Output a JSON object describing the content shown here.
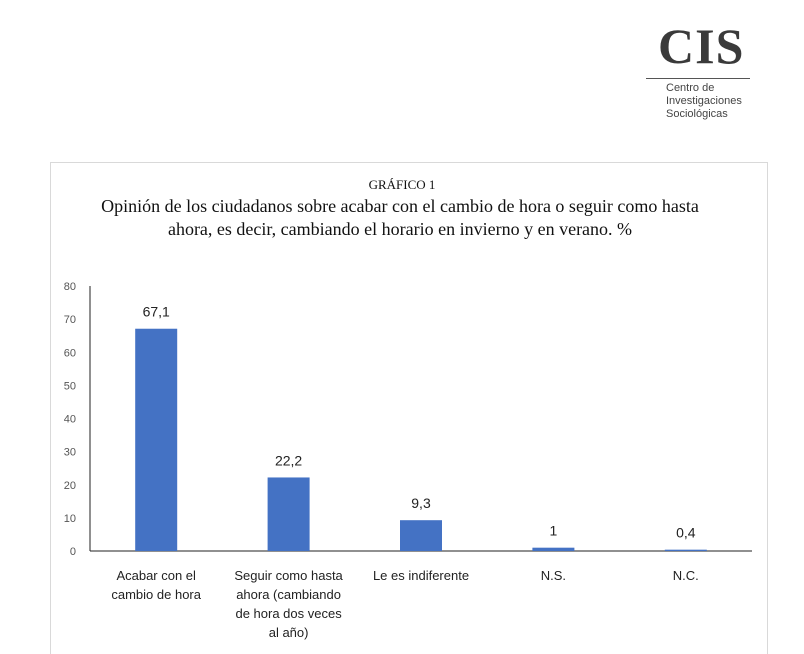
{
  "logo": {
    "mark": "CIS",
    "lines": [
      "Centro de",
      "Investigaciones",
      "Sociológicas"
    ]
  },
  "chart_data": {
    "type": "bar",
    "kicker": "GRÁFICO 1",
    "title": "Opinión de los ciudadanos sobre acabar con el cambio de hora o seguir como hasta ahora, es decir, cambiando el horario en invierno y en verano. %",
    "categories": [
      "Acabar con el cambio de hora",
      "Seguir como hasta ahora (cambiando de hora dos veces al año)",
      "Le es indiferente",
      "N.S.",
      "N.C."
    ],
    "category_lines": [
      [
        "Acabar con el",
        "cambio de hora"
      ],
      [
        "Seguir como hasta",
        "ahora (cambiando",
        "de hora dos veces",
        "al año)"
      ],
      [
        "Le es indiferente"
      ],
      [
        "N.S."
      ],
      [
        "N.C."
      ]
    ],
    "values": [
      67.1,
      22.2,
      9.3,
      1,
      0.4
    ],
    "value_labels": [
      "67,1",
      "22,2",
      "9,3",
      "1",
      "0,4"
    ],
    "ylim": [
      0,
      80
    ],
    "yticks": [
      0,
      10,
      20,
      30,
      40,
      50,
      60,
      70,
      80
    ],
    "grid": false,
    "legend": "none",
    "bar_color": "#4472c4"
  }
}
